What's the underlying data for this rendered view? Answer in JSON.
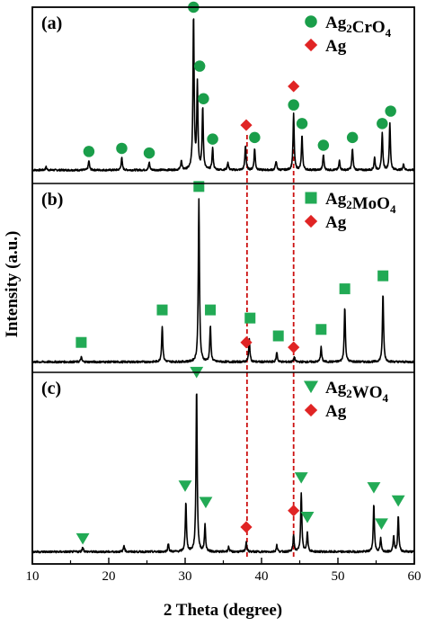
{
  "chart_data": {
    "type": "line",
    "xlabel": "2 Theta (degree)",
    "ylabel": "Intensity (a.u.)",
    "xlim": [
      10,
      60
    ],
    "xticks": [
      10,
      20,
      30,
      40,
      50,
      60
    ],
    "ag_reference_lines": [
      38.1,
      44.2
    ],
    "colors": {
      "circle": "#1a9e4a",
      "square": "#22aa55",
      "triangle": "#22aa55",
      "diamond": "#e02424",
      "refline": "#cc1111",
      "trace": "#000000"
    },
    "panels": [
      {
        "label": "(a)",
        "legend": [
          {
            "marker": "circle",
            "base": "Ag",
            "sub1": "2",
            "mid": "CrO",
            "sub2": "4"
          },
          {
            "marker": "diamond",
            "base": "Ag",
            "sub1": "",
            "mid": "",
            "sub2": ""
          }
        ],
        "baseline": 0.04,
        "peaks": [
          {
            "x": 11.8,
            "h": 0.02
          },
          {
            "x": 17.4,
            "h": 0.06
          },
          {
            "x": 21.7,
            "h": 0.08
          },
          {
            "x": 25.3,
            "h": 0.05
          },
          {
            "x": 29.5,
            "h": 0.06
          },
          {
            "x": 31.1,
            "h": 1.0
          },
          {
            "x": 31.6,
            "h": 0.55
          },
          {
            "x": 32.3,
            "h": 0.4
          },
          {
            "x": 33.6,
            "h": 0.14
          },
          {
            "x": 35.6,
            "h": 0.05
          },
          {
            "x": 37.9,
            "h": 0.16
          },
          {
            "x": 39.1,
            "h": 0.14
          },
          {
            "x": 41.9,
            "h": 0.06
          },
          {
            "x": 44.2,
            "h": 0.36
          },
          {
            "x": 45.3,
            "h": 0.22
          },
          {
            "x": 48.1,
            "h": 0.1
          },
          {
            "x": 50.2,
            "h": 0.06
          },
          {
            "x": 51.9,
            "h": 0.14
          },
          {
            "x": 54.8,
            "h": 0.08
          },
          {
            "x": 55.8,
            "h": 0.24
          },
          {
            "x": 56.8,
            "h": 0.3
          },
          {
            "x": 58.6,
            "h": 0.04
          }
        ],
        "markers": [
          {
            "shape": "circle",
            "x": 17.4,
            "y": 0.16
          },
          {
            "shape": "circle",
            "x": 21.7,
            "y": 0.18
          },
          {
            "shape": "circle",
            "x": 25.3,
            "y": 0.15
          },
          {
            "shape": "circle",
            "x": 31.1,
            "y": 1.09
          },
          {
            "shape": "circle",
            "x": 31.9,
            "y": 0.71
          },
          {
            "shape": "circle",
            "x": 32.4,
            "y": 0.5
          },
          {
            "shape": "circle",
            "x": 33.6,
            "y": 0.24
          },
          {
            "shape": "diamond",
            "x": 38.0,
            "y": 0.33
          },
          {
            "shape": "circle",
            "x": 39.1,
            "y": 0.25
          },
          {
            "shape": "diamond",
            "x": 44.2,
            "y": 0.58
          },
          {
            "shape": "circle",
            "x": 44.2,
            "y": 0.46
          },
          {
            "shape": "circle",
            "x": 45.3,
            "y": 0.34
          },
          {
            "shape": "circle",
            "x": 48.1,
            "y": 0.2
          },
          {
            "shape": "circle",
            "x": 51.9,
            "y": 0.25
          },
          {
            "shape": "circle",
            "x": 55.8,
            "y": 0.34
          },
          {
            "shape": "circle",
            "x": 56.9,
            "y": 0.42
          }
        ]
      },
      {
        "label": "(b)",
        "legend": [
          {
            "marker": "square",
            "base": "Ag",
            "sub1": "2",
            "mid": "MoO",
            "sub2": "4"
          },
          {
            "marker": "diamond",
            "base": "Ag",
            "sub1": "",
            "mid": "",
            "sub2": ""
          }
        ],
        "baseline": 0.02,
        "peaks": [
          {
            "x": 16.4,
            "h": 0.03
          },
          {
            "x": 27.0,
            "h": 0.22
          },
          {
            "x": 31.8,
            "h": 1.0
          },
          {
            "x": 33.3,
            "h": 0.22
          },
          {
            "x": 38.4,
            "h": 0.14
          },
          {
            "x": 42.0,
            "h": 0.06
          },
          {
            "x": 44.3,
            "h": 0.03
          },
          {
            "x": 47.8,
            "h": 0.09
          },
          {
            "x": 50.9,
            "h": 0.34
          },
          {
            "x": 55.9,
            "h": 0.42
          }
        ],
        "markers": [
          {
            "shape": "square",
            "x": 16.4,
            "y": 0.14
          },
          {
            "shape": "square",
            "x": 27.0,
            "y": 0.34
          },
          {
            "shape": "square",
            "x": 31.8,
            "y": 1.1
          },
          {
            "shape": "square",
            "x": 33.3,
            "y": 0.34
          },
          {
            "shape": "diamond",
            "x": 38.0,
            "y": 0.14
          },
          {
            "shape": "square",
            "x": 38.5,
            "y": 0.29
          },
          {
            "shape": "square",
            "x": 42.2,
            "y": 0.18
          },
          {
            "shape": "diamond",
            "x": 44.2,
            "y": 0.11
          },
          {
            "shape": "square",
            "x": 47.8,
            "y": 0.22
          },
          {
            "shape": "square",
            "x": 50.9,
            "y": 0.47
          },
          {
            "shape": "square",
            "x": 55.9,
            "y": 0.55
          }
        ]
      },
      {
        "label": "(c)",
        "legend": [
          {
            "marker": "triangle",
            "base": "Ag",
            "sub1": "2",
            "mid": "WO",
            "sub2": "4"
          },
          {
            "marker": "diamond",
            "base": "Ag",
            "sub1": "",
            "mid": "",
            "sub2": ""
          }
        ],
        "baseline": 0.03,
        "peaks": [
          {
            "x": 16.6,
            "h": 0.03
          },
          {
            "x": 22.0,
            "h": 0.04
          },
          {
            "x": 27.8,
            "h": 0.05
          },
          {
            "x": 30.1,
            "h": 0.3
          },
          {
            "x": 31.5,
            "h": 1.0
          },
          {
            "x": 32.6,
            "h": 0.16
          },
          {
            "x": 35.7,
            "h": 0.03
          },
          {
            "x": 38.0,
            "h": 0.06
          },
          {
            "x": 42.0,
            "h": 0.04
          },
          {
            "x": 44.2,
            "h": 0.1
          },
          {
            "x": 45.2,
            "h": 0.36
          },
          {
            "x": 46.0,
            "h": 0.12
          },
          {
            "x": 54.7,
            "h": 0.29
          },
          {
            "x": 55.6,
            "h": 0.08
          },
          {
            "x": 57.3,
            "h": 0.1
          },
          {
            "x": 57.9,
            "h": 0.22
          }
        ],
        "markers": [
          {
            "shape": "triangle",
            "x": 16.6,
            "y": 0.11
          },
          {
            "shape": "triangle",
            "x": 30.0,
            "y": 0.43
          },
          {
            "shape": "triangle",
            "x": 31.5,
            "y": 1.12
          },
          {
            "shape": "triangle",
            "x": 32.7,
            "y": 0.33
          },
          {
            "shape": "diamond",
            "x": 38.0,
            "y": 0.18
          },
          {
            "shape": "diamond",
            "x": 44.2,
            "y": 0.28
          },
          {
            "shape": "triangle",
            "x": 45.2,
            "y": 0.48
          },
          {
            "shape": "triangle",
            "x": 46.0,
            "y": 0.24
          },
          {
            "shape": "triangle",
            "x": 54.7,
            "y": 0.42
          },
          {
            "shape": "triangle",
            "x": 55.7,
            "y": 0.2
          },
          {
            "shape": "triangle",
            "x": 57.9,
            "y": 0.34
          }
        ]
      }
    ]
  }
}
